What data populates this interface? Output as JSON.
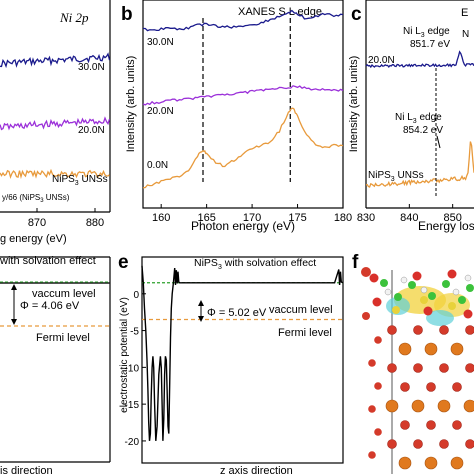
{
  "chart_data": [
    {
      "panel": "a",
      "type": "line",
      "annotation": "Ni 2p",
      "xlabel_fragment": "g energy (eV)",
      "x_ticks": [
        "870",
        "880"
      ],
      "x_tick_values": [
        870,
        880
      ],
      "xlim": [
        858,
        884
      ],
      "series": [
        {
          "name": "30.0N",
          "color": "#1a1a8c",
          "level": 0.7
        },
        {
          "name": "20.0N",
          "color": "#9b30d9",
          "level": 0.4
        },
        {
          "name": "NiPS3 UNSs",
          "color": "#e89a3c",
          "level": 0.18
        }
      ],
      "labels": {
        "s30": "30.0N",
        "s20": "20.0N",
        "sbase_main": "NiPS",
        "sbase_sub": "3",
        "sbase_tail": " UNSs",
        "footnote": "y/66 (NiPS",
        "footnote_sub": "3",
        "footnote_tail": " UNSs)"
      }
    },
    {
      "panel": "b",
      "type": "line",
      "title": "XANES S L edge",
      "xlabel": "Photon energy (eV)",
      "ylabel": "Intensity (arb. units)",
      "x_ticks": [
        "160",
        "165",
        "170",
        "175",
        "180"
      ],
      "x_tick_values": [
        160,
        165,
        170,
        175,
        180
      ],
      "xlim": [
        158,
        180
      ],
      "dashed_lines_x": [
        164.6,
        174.2
      ],
      "series": [
        {
          "name": "30.0N",
          "color": "#1a1a8c",
          "x": [
            158,
            159,
            160,
            161,
            162,
            163,
            164,
            165,
            166,
            167,
            168,
            169,
            170,
            171,
            172,
            173,
            174,
            174.5,
            175,
            176,
            177,
            178,
            179,
            180
          ],
          "y": [
            0.86,
            0.855,
            0.86,
            0.865,
            0.86,
            0.865,
            0.88,
            0.885,
            0.875,
            0.87,
            0.87,
            0.875,
            0.88,
            0.89,
            0.905,
            0.92,
            0.94,
            0.945,
            0.93,
            0.91,
            0.92,
            0.935,
            0.925,
            0.93
          ]
        },
        {
          "name": "20.0N",
          "color": "#9b30d9",
          "x": [
            158,
            159,
            160,
            161,
            162,
            163,
            164,
            165,
            166,
            167,
            168,
            169,
            170,
            171,
            172,
            173,
            174,
            175,
            176,
            177,
            178,
            179,
            180
          ],
          "y": [
            0.5,
            0.505,
            0.51,
            0.52,
            0.52,
            0.525,
            0.53,
            0.535,
            0.54,
            0.545,
            0.55,
            0.555,
            0.56,
            0.565,
            0.57,
            0.575,
            0.58,
            0.585,
            0.575,
            0.57,
            0.57,
            0.565,
            0.565
          ]
        },
        {
          "name": "0.0N",
          "color": "#e89a3c",
          "x": [
            158,
            159,
            160,
            161,
            162,
            163,
            164,
            164.6,
            165,
            166,
            167,
            168,
            169,
            170,
            171,
            172,
            173,
            174,
            174.5,
            175,
            176,
            177,
            178,
            179,
            180
          ],
          "y": [
            0.1,
            0.11,
            0.13,
            0.14,
            0.15,
            0.18,
            0.25,
            0.28,
            0.26,
            0.22,
            0.2,
            0.23,
            0.26,
            0.29,
            0.3,
            0.32,
            0.37,
            0.46,
            0.48,
            0.44,
            0.35,
            0.3,
            0.29,
            0.3,
            0.3
          ]
        }
      ],
      "labels": {
        "s30": "30.0N",
        "s20": "20.0N",
        "s0": "0.0N"
      }
    },
    {
      "panel": "c",
      "type": "line",
      "title_fragment": "E",
      "xlabel_fragment": "Energy los",
      "x_ticks": [
        "830",
        "840",
        "850",
        "860"
      ],
      "x_tick_values": [
        830,
        840,
        850,
        860
      ],
      "xlim": [
        830,
        863
      ],
      "series": [
        {
          "name": "20.0N",
          "color": "#1a1a8c"
        },
        {
          "name": "NiPS3 UNSs",
          "color": "#e89a3c"
        }
      ],
      "annotations": [
        {
          "line1": "Ni L",
          "sub": "3",
          "line1_tail": " edge",
          "line2": "851.7 eV"
        },
        {
          "line1": "Ni L",
          "sub": "3",
          "line1_tail": " edge",
          "line2": "854.2 eV"
        }
      ],
      "labels": {
        "s20": "20.0N",
        "sbase_main": "NiPS",
        "sbase_sub": "3",
        "sbase_tail": " UNSs",
        "edge_n": "N"
      }
    },
    {
      "panel": "d",
      "type": "line",
      "title_fragment": "with solvation effect",
      "xlabel_fragment": "is direction",
      "annotations": {
        "vacuum": "vaccum level",
        "phi": "Φ = 4.06 eV",
        "fermi": "Fermi level"
      }
    },
    {
      "panel": "e",
      "type": "line",
      "title_main": "NiPS",
      "title_sub": "3",
      "title_tail": " with solvation effect",
      "xlabel": "z axis direction",
      "ylabel": "electrostatic potential (eV)",
      "y_ticks": [
        "0",
        "-5",
        "-10",
        "-15",
        "-20"
      ],
      "y_tick_values": [
        0,
        -5,
        -10,
        -15,
        -20
      ],
      "ylim": [
        -23,
        5
      ],
      "xlim": [
        0,
        480
      ],
      "vacuum_level": 1.5,
      "fermi_level": -3.5,
      "annotations": {
        "vacuum": "vaccum level",
        "phi": "Φ = 5.02 eV",
        "fermi": "Fermi level"
      },
      "series": [
        {
          "name": "",
          "color": "#000000",
          "x": [
            0,
            3,
            6,
            9,
            12,
            14,
            16,
            18,
            20,
            22,
            24,
            26,
            28,
            30,
            33,
            36,
            40,
            44,
            46,
            48,
            50,
            52,
            54,
            56,
            58,
            60,
            62,
            64,
            66,
            68,
            70,
            72,
            75,
            78,
            80,
            82,
            84,
            86,
            88,
            90,
            100,
            150,
            200,
            300,
            400,
            460,
            470,
            472,
            474,
            476,
            480
          ],
          "y": [
            3.8,
            1.5,
            -2,
            -5,
            -9,
            -13,
            -17.5,
            -20,
            -19,
            -14,
            -10,
            -8.5,
            -10,
            -15,
            -20,
            -18,
            -11,
            -8.5,
            -10,
            -15,
            -20,
            -17,
            -11,
            -8.5,
            -9,
            -13,
            -18,
            -19,
            -13,
            -6,
            -2,
            0,
            1.5,
            3.5,
            1.2,
            3.2,
            1.4,
            3,
            1.6,
            1.5,
            1.5,
            1.5,
            1.5,
            1.5,
            1.5,
            1.5,
            3.3,
            1.2,
            3,
            1.6,
            1.5
          ]
        }
      ]
    },
    {
      "panel": "f",
      "type": "other",
      "description_label": ""
    }
  ],
  "panel_letters": {
    "b": "b",
    "c": "c",
    "e": "e",
    "f": "f"
  }
}
